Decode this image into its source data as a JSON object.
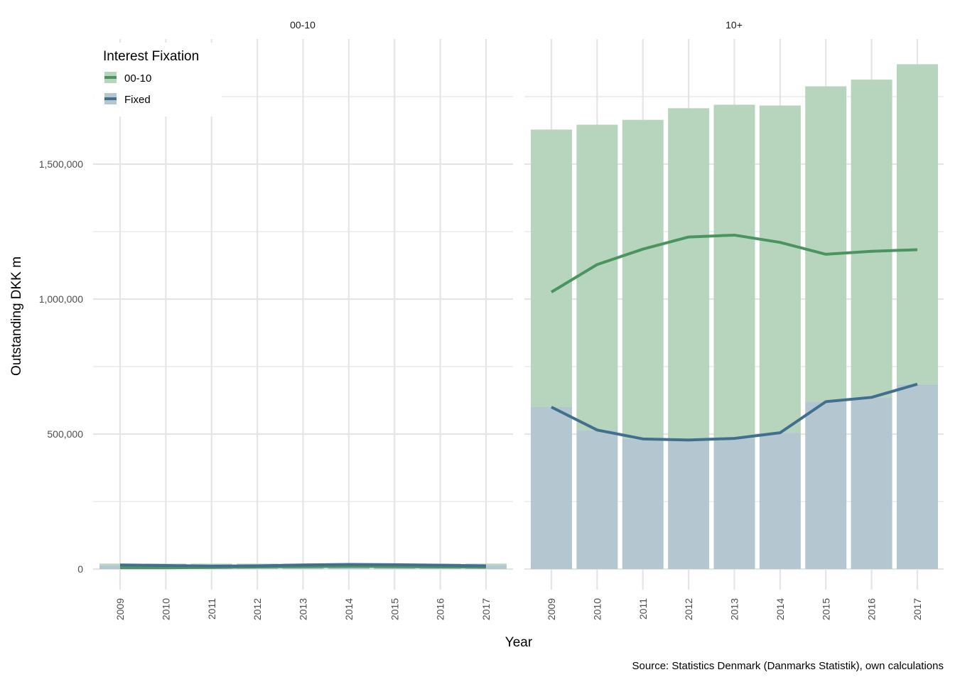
{
  "chart_data": {
    "type": "bar",
    "facet_variable": "Interest Fixation",
    "xlabel": "Year",
    "ylabel": "Outstanding DKK m",
    "caption": "Source: Statistics Denmark (Danmarks Statistik), own calculations",
    "ylim": [
      -90000,
      1900000
    ],
    "y_ticks": [
      0,
      500000,
      1000000,
      1500000
    ],
    "y_tick_labels": [
      "0",
      "500,000",
      "1,000,000",
      "1,500,000"
    ],
    "x": [
      2009,
      2010,
      2011,
      2012,
      2013,
      2014,
      2015,
      2016,
      2017
    ],
    "legend": {
      "title": "Interest Fixation",
      "placement": "top-left",
      "entries": [
        {
          "label": "00-10",
          "color": "#4a9460"
        },
        {
          "label": "Fixed",
          "color": "#41708f"
        }
      ]
    },
    "colors": {
      "green_line": "#4a9460",
      "blue_line": "#41708f",
      "green_fill": "#b7d5bd",
      "blue_fill": "#b4c6d0",
      "grid": "#e5e5e5"
    },
    "panels": [
      {
        "strip_label": "00-10",
        "series": [
          {
            "name": "00-10",
            "kind": "bar_total",
            "values": [
              20000,
              20000,
              20000,
              20000,
              20000,
              20000,
              20000,
              20000,
              20000
            ]
          },
          {
            "name": "Fixed",
            "kind": "bar_fixed",
            "values": [
              14000,
              14000,
              14000,
              14000,
              14000,
              14000,
              14000,
              14000,
              14000
            ]
          },
          {
            "name": "00-10",
            "kind": "line",
            "values": [
              5000,
              5000,
              6000,
              8000,
              9000,
              10000,
              9000,
              8000,
              7000
            ]
          },
          {
            "name": "Fixed",
            "kind": "line",
            "values": [
              15000,
              13000,
              11000,
              12000,
              15000,
              17000,
              16000,
              14000,
              12000
            ]
          }
        ]
      },
      {
        "strip_label": "10+",
        "series": [
          {
            "name": "00-10",
            "kind": "bar_total",
            "values": [
              1628000,
              1646000,
              1664000,
              1707000,
              1720000,
              1717000,
              1788000,
              1813000,
              1870000
            ]
          },
          {
            "name": "Fixed",
            "kind": "bar_fixed",
            "values": [
              600000,
              515000,
              482000,
              478000,
              484000,
              505000,
              620000,
              636000,
              685000
            ]
          },
          {
            "name": "00-10",
            "kind": "line",
            "values": [
              1026000,
              1128000,
              1185000,
              1230000,
              1237000,
              1210000,
              1166000,
              1177000,
              1183000
            ]
          },
          {
            "name": "Fixed",
            "kind": "line",
            "values": [
              600000,
              515000,
              482000,
              478000,
              484000,
              505000,
              620000,
              636000,
              685000
            ]
          }
        ]
      }
    ]
  }
}
